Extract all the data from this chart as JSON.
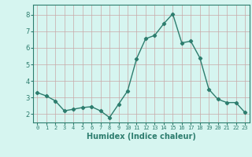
{
  "x": [
    0,
    1,
    2,
    3,
    4,
    5,
    6,
    7,
    8,
    9,
    10,
    11,
    12,
    13,
    14,
    15,
    16,
    17,
    18,
    19,
    20,
    21,
    22,
    23
  ],
  "y": [
    3.3,
    3.1,
    2.8,
    2.2,
    2.3,
    2.4,
    2.45,
    2.2,
    1.8,
    2.6,
    3.4,
    5.35,
    6.55,
    6.75,
    7.45,
    8.05,
    6.3,
    6.4,
    5.4,
    3.5,
    2.9,
    2.7,
    2.7,
    2.1
  ],
  "line_color": "#2d7d6e",
  "marker": "D",
  "markersize": 2.2,
  "linewidth": 1.0,
  "bg_color": "#d6f5f0",
  "grid_color_v": "#c8a8a8",
  "grid_color_h": "#c8a8a8",
  "xlabel": "Humidex (Indice chaleur)",
  "xlabel_fontsize": 7,
  "ylabel_ticks": [
    2,
    3,
    4,
    5,
    6,
    7,
    8
  ],
  "xtick_labels": [
    "0",
    "1",
    "2",
    "3",
    "4",
    "5",
    "6",
    "7",
    "8",
    "9",
    "10",
    "11",
    "12",
    "13",
    "14",
    "15",
    "16",
    "17",
    "18",
    "19",
    "20",
    "21",
    "22",
    "23"
  ],
  "xlim": [
    -0.5,
    23.5
  ],
  "ylim": [
    1.5,
    8.6
  ],
  "tick_color": "#2d7d6e",
  "label_color": "#2d7d6e"
}
